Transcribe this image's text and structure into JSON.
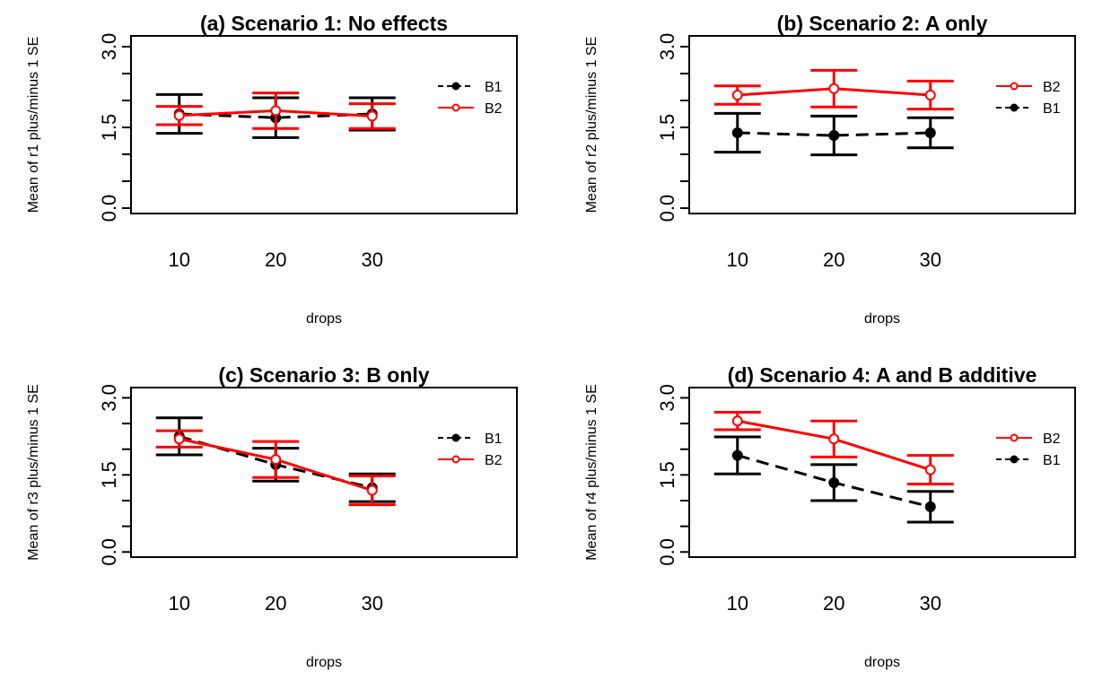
{
  "colors": {
    "B1": "#000000",
    "B2": "#ff0000",
    "background": "#ffffff"
  },
  "chart_data": [
    {
      "type": "line",
      "title": "(a) Scenario 1: No effects",
      "xlabel": "drops",
      "ylabel": "Mean of  r1 plus/minus 1 SE",
      "x": [
        10,
        20,
        30
      ],
      "x_tick_labels": [
        "10",
        "20",
        "30"
      ],
      "y_tick_labels": [
        "0.0",
        "1.5",
        "3.0"
      ],
      "xlim": [
        5,
        45
      ],
      "ylim": [
        -0.1,
        3.2
      ],
      "legend_position": "top-right",
      "legend_order": [
        "B1",
        "B2"
      ],
      "series": [
        {
          "name": "B1",
          "values": [
            1.75,
            1.68,
            1.75
          ],
          "error": [
            0.36,
            0.37,
            0.3
          ]
        },
        {
          "name": "B2",
          "values": [
            1.72,
            1.81,
            1.71
          ],
          "error": [
            0.17,
            0.33,
            0.23
          ]
        }
      ]
    },
    {
      "type": "line",
      "title": "(b) Scenario 2: A only",
      "xlabel": "drops",
      "ylabel": "Mean of  r2 plus/minus 1 SE",
      "x": [
        10,
        20,
        30
      ],
      "x_tick_labels": [
        "10",
        "20",
        "30"
      ],
      "y_tick_labels": [
        "0.0",
        "1.5",
        "3.0"
      ],
      "xlim": [
        5,
        45
      ],
      "ylim": [
        -0.1,
        3.2
      ],
      "legend_position": "top-right",
      "legend_order": [
        "B2",
        "B1"
      ],
      "series": [
        {
          "name": "B2",
          "values": [
            2.1,
            2.22,
            2.1
          ],
          "error": [
            0.17,
            0.34,
            0.26
          ]
        },
        {
          "name": "B1",
          "values": [
            1.4,
            1.35,
            1.4
          ],
          "error": [
            0.36,
            0.36,
            0.28
          ]
        }
      ]
    },
    {
      "type": "line",
      "title": "(c) Scenario 3: B only",
      "xlabel": "drops",
      "ylabel": "Mean of  r3 plus/minus 1 SE",
      "x": [
        10,
        20,
        30
      ],
      "x_tick_labels": [
        "10",
        "20",
        "30"
      ],
      "y_tick_labels": [
        "0.0",
        "1.5",
        "3.0"
      ],
      "xlim": [
        5,
        45
      ],
      "ylim": [
        -0.1,
        3.2
      ],
      "legend_position": "top-right",
      "legend_order": [
        "B1",
        "B2"
      ],
      "series": [
        {
          "name": "B1",
          "values": [
            2.25,
            1.7,
            1.25
          ],
          "error": [
            0.36,
            0.32,
            0.27
          ]
        },
        {
          "name": "B2",
          "values": [
            2.2,
            1.8,
            1.2
          ],
          "error": [
            0.16,
            0.35,
            0.28
          ]
        }
      ]
    },
    {
      "type": "line",
      "title": "(d) Scenario 4: A and B additive",
      "xlabel": "drops",
      "ylabel": "Mean of  r4 plus/minus 1 SE",
      "x": [
        10,
        20,
        30
      ],
      "x_tick_labels": [
        "10",
        "20",
        "30"
      ],
      "y_tick_labels": [
        "0.0",
        "1.5",
        "3.0"
      ],
      "xlim": [
        5,
        45
      ],
      "ylim": [
        -0.1,
        3.2
      ],
      "legend_position": "top-right",
      "legend_order": [
        "B2",
        "B1"
      ],
      "series": [
        {
          "name": "B2",
          "values": [
            2.55,
            2.2,
            1.6
          ],
          "error": [
            0.17,
            0.35,
            0.28
          ]
        },
        {
          "name": "B1",
          "values": [
            1.88,
            1.35,
            0.88
          ],
          "error": [
            0.36,
            0.35,
            0.3
          ]
        }
      ]
    }
  ]
}
